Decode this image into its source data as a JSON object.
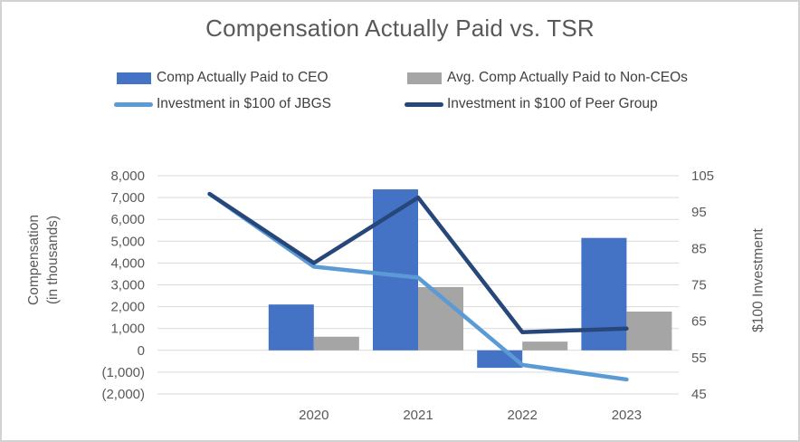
{
  "title": "Compensation Actually Paid vs. TSR",
  "legend": [
    {
      "label": "Comp Actually Paid to CEO",
      "type": "bar",
      "color": "#4472c4"
    },
    {
      "label": "Avg. Comp Actually Paid to Non-CEOs",
      "type": "bar",
      "color": "#a5a5a5"
    },
    {
      "label": "Investment in $100 of JBGS",
      "type": "line",
      "color": "#5b9bd5"
    },
    {
      "label": "Investment in $100 of Peer Group",
      "type": "line",
      "color": "#27477b"
    }
  ],
  "chart_data": {
    "type": "combo-bar-line",
    "categories": [
      "",
      "2020",
      "2021",
      "2022",
      "2023"
    ],
    "series": [
      {
        "name": "Comp Actually Paid to CEO",
        "type": "bar",
        "axis": "left",
        "color": "#4472c4",
        "values": [
          null,
          2100,
          7375,
          -800,
          5150
        ]
      },
      {
        "name": "Avg. Comp Actually Paid to Non-CEOs",
        "type": "bar",
        "axis": "left",
        "color": "#a5a5a5",
        "values": [
          null,
          625,
          2900,
          400,
          1775
        ]
      },
      {
        "name": "Investment in $100 of JBGS",
        "type": "line",
        "axis": "right",
        "color": "#5b9bd5",
        "values": [
          100,
          80,
          77,
          53,
          49
        ]
      },
      {
        "name": "Investment in $100 of Peer Group",
        "type": "line",
        "axis": "right",
        "color": "#27477b",
        "values": [
          100,
          81,
          99,
          62,
          63
        ]
      }
    ],
    "left_axis": {
      "title_lines": [
        "Compensation",
        "(in thousands)"
      ],
      "min": -2000,
      "max": 8000,
      "step": 1000,
      "tick_labels": [
        "8,000",
        "7,000",
        "6,000",
        "5,000",
        "4,000",
        "3,000",
        "2,000",
        "1,000",
        "0",
        "(1,000)",
        "(2,000)"
      ]
    },
    "right_axis": {
      "title": "$100 Investment",
      "min": 45,
      "max": 105,
      "step": 10,
      "tick_labels": [
        "105",
        "95",
        "85",
        "75",
        "65",
        "55",
        "45"
      ]
    },
    "grid": true,
    "legend_position": "top"
  },
  "colors": {
    "gridline": "#d9d9d9",
    "title_text": "#595959",
    "legend_text": "#404040",
    "tick_text": "#595959",
    "frame_border": "#d2d2d2"
  }
}
